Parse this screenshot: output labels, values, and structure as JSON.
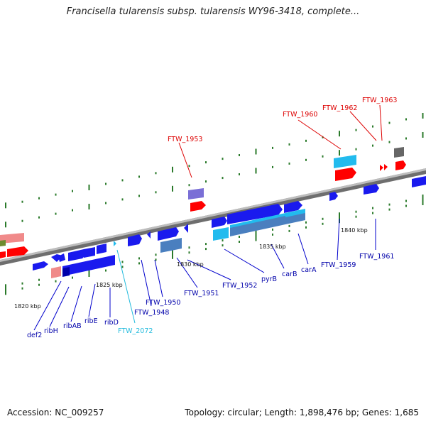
{
  "title": "Francisella tularensis subsp. tularensis WY96-3418, complete...",
  "footer": {
    "accession": "Accession: NC_009257",
    "summary": "Topology: circular; Length: 1,898,476 bp; Genes: 1,685"
  },
  "colors": {
    "forward_gene": "#0000ee",
    "reverse_gene": "#ff0000",
    "rna_gene": "#00c8ff",
    "label_blue": "#0000aa",
    "label_red": "#dd0000",
    "label_cyan": "#22bbdd",
    "axis": "#888888",
    "tick": "#2a7a2a"
  },
  "scale_labels": [
    "1820 kbp",
    "1825 kbp",
    "1830 kbp",
    "1835 kbp",
    "1840 kbp"
  ],
  "gene_labels": [
    {
      "id": "FTW_1953",
      "color": "red"
    },
    {
      "id": "FTW_1960",
      "color": "red"
    },
    {
      "id": "FTW_1962",
      "color": "red"
    },
    {
      "id": "FTW_1963",
      "color": "red"
    },
    {
      "id": "def2",
      "color": "blue"
    },
    {
      "id": "ribH",
      "color": "blue"
    },
    {
      "id": "ribAB",
      "color": "blue"
    },
    {
      "id": "ribE",
      "color": "blue"
    },
    {
      "id": "ribD",
      "color": "blue"
    },
    {
      "id": "FTW_2072",
      "color": "cyan"
    },
    {
      "id": "FTW_1948",
      "color": "blue"
    },
    {
      "id": "FTW_1950",
      "color": "blue"
    },
    {
      "id": "FTW_1951",
      "color": "blue"
    },
    {
      "id": "FTW_1952",
      "color": "blue"
    },
    {
      "id": "pyrB",
      "color": "blue"
    },
    {
      "id": "carB",
      "color": "blue"
    },
    {
      "id": "carA",
      "color": "blue"
    },
    {
      "id": "FTW_1959",
      "color": "blue"
    },
    {
      "id": "FTW_1961",
      "color": "blue"
    }
  ]
}
